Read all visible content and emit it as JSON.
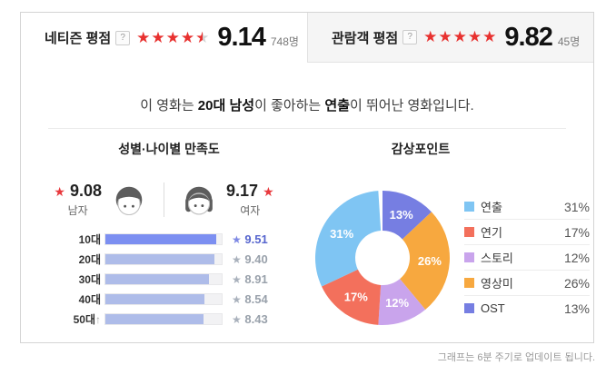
{
  "header": {
    "netizen": {
      "label": "네티즌 평점",
      "help": "?",
      "stars": 4.5,
      "score": "9.14",
      "count": "748명"
    },
    "audience": {
      "label": "관람객 평점",
      "help": "?",
      "stars": 5,
      "score": "9.82",
      "count": "45명"
    }
  },
  "summary": {
    "seg1": "이 영화는 ",
    "seg2": "20대 남성",
    "seg3": "이 좋아하는 ",
    "seg4": "연출",
    "seg5": "이 뛰어난 영화입니다."
  },
  "satisfaction": {
    "title": "성별·나이별 만족도",
    "male": {
      "score": "9.08",
      "label": "남자"
    },
    "female": {
      "score": "9.17",
      "label": "여자"
    }
  },
  "viewpoint": {
    "title": "감상포인트"
  },
  "footer": {
    "note": "그래프는 6분 주기로 업데이트 됩니다."
  },
  "colors": {
    "star_red": "#e8312f",
    "star_empty": "#d2d2d2",
    "bar_highlight": "#7c8ff1",
    "bar_normal": "#aebce9",
    "value_highlight": "#5665ce",
    "value_normal": "#99a1ab",
    "panel_bg": "#f5f5f5"
  },
  "chart_data": [
    {
      "type": "bar",
      "title": "성별·나이별 만족도",
      "orientation": "horizontal",
      "categories": [
        "10대",
        "20대",
        "30대",
        "40대",
        "50대↑"
      ],
      "values": [
        9.51,
        9.4,
        8.91,
        8.54,
        8.43
      ],
      "xlim": [
        0,
        10
      ],
      "highlight_index": 0,
      "annotations": {
        "male_score": 9.08,
        "female_score": 9.17
      }
    },
    {
      "type": "pie",
      "title": "감상포인트",
      "donut": true,
      "legend_position": "right",
      "start_angle": "top",
      "direction": "clockwise-reversed-legend-order",
      "items": [
        {
          "label": "연출",
          "value": 31,
          "color": "#7fc5f3"
        },
        {
          "label": "연기",
          "value": 17,
          "color": "#f3705c"
        },
        {
          "label": "스토리",
          "value": 12,
          "color": "#c9a4ec"
        },
        {
          "label": "영상미",
          "value": 26,
          "color": "#f7a83f"
        },
        {
          "label": "OST",
          "value": 13,
          "color": "#767ee2"
        }
      ]
    }
  ]
}
